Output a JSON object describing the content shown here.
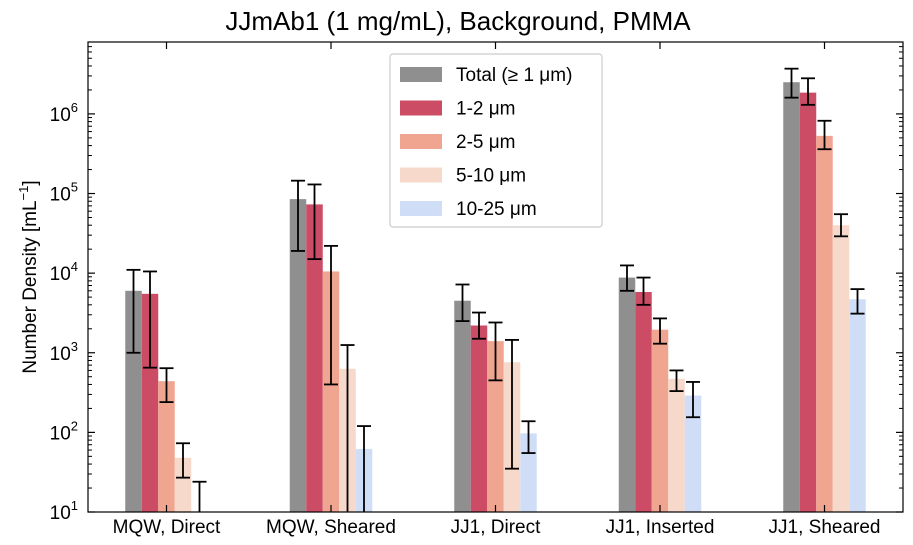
{
  "chart_data": {
    "type": "bar",
    "title": "JJmAb1 (1 mg/mL), Background, PMMA",
    "ylabel_main": "Number Density [mL",
    "ylabel_sup": "−1",
    "ylabel_close": "]",
    "yscale": "log",
    "ylim": [
      10,
      8000000
    ],
    "yticks": [
      {
        "value": 10,
        "base": "10",
        "exp": "1"
      },
      {
        "value": 100,
        "base": "10",
        "exp": "2"
      },
      {
        "value": 1000,
        "base": "10",
        "exp": "3"
      },
      {
        "value": 10000,
        "base": "10",
        "exp": "4"
      },
      {
        "value": 100000,
        "base": "10",
        "exp": "5"
      },
      {
        "value": 1000000,
        "base": "10",
        "exp": "6"
      }
    ],
    "categories": [
      "MQW, Direct",
      "MQW, Sheared",
      "JJ1, Direct",
      "JJ1, Inserted",
      "JJ1, Sheared"
    ],
    "legend_position": "top-center",
    "series": [
      {
        "name": "Total (≥  1 μm)",
        "color": "#8f8f8f",
        "values": [
          6000,
          85000,
          4500,
          8800,
          2500000
        ],
        "err_low": [
          1000,
          19000,
          2500,
          6000,
          1600000
        ],
        "err_high": [
          11000,
          145000,
          7200,
          12500,
          3700000
        ]
      },
      {
        "name": "1-2 μm",
        "color": "#cc4c66",
        "values": [
          5500,
          73000,
          2200,
          5800,
          1850000
        ],
        "err_low": [
          650,
          15000,
          1500,
          4000,
          1300000
        ],
        "err_high": [
          10500,
          130000,
          3200,
          8800,
          2800000
        ]
      },
      {
        "name": "2-5 μm",
        "color": "#f0a590",
        "values": [
          440,
          10500,
          1400,
          1950,
          530000
        ],
        "err_low": [
          240,
          400,
          450,
          1300,
          360000
        ],
        "err_high": [
          640,
          22000,
          2400,
          2700,
          820000
        ]
      },
      {
        "name": "5-10 μm",
        "color": "#f6d9ca",
        "values": [
          48,
          630,
          760,
          470,
          40000
        ],
        "err_low": [
          27,
          10,
          35,
          330,
          29000
        ],
        "err_high": [
          73,
          1250,
          1450,
          600,
          55000
        ]
      },
      {
        "name": "10-25 μm",
        "color": "#cfddf6",
        "values": [
          null,
          62,
          97,
          290,
          4700
        ],
        "err_low": [
          10,
          10,
          55,
          155,
          3100
        ],
        "err_high": [
          24,
          120,
          138,
          430,
          6300
        ]
      }
    ]
  }
}
